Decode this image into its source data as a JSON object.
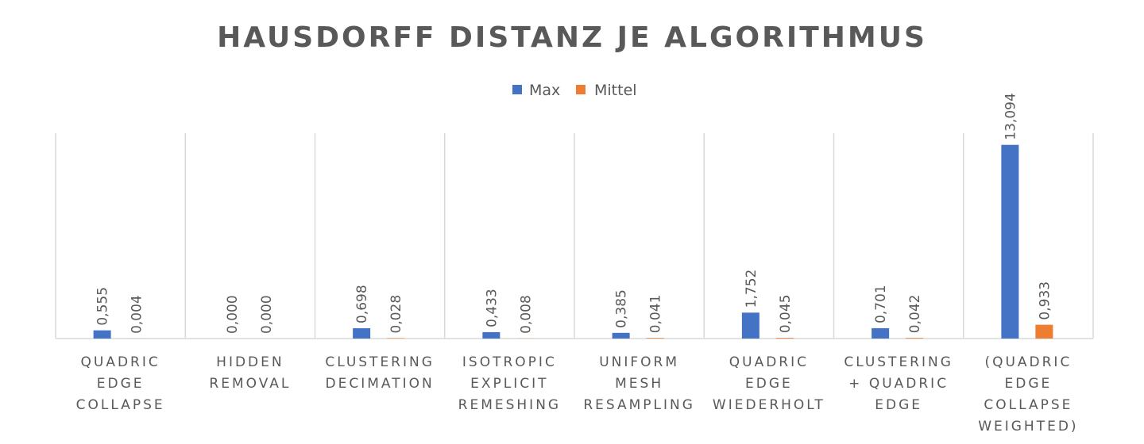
{
  "chart_data": {
    "type": "bar",
    "title": "HAUSDORFF DISTANZ JE ALGORITHMUS",
    "xlabel": "",
    "ylabel": "",
    "ylim": [
      0,
      16
    ],
    "grid": "vertical-category-separators",
    "legend": "top-center",
    "categories": [
      [
        "QUADRIC",
        "EDGE",
        "COLLAPSE"
      ],
      [
        "HIDDEN",
        "REMOVAL"
      ],
      [
        "CLUSTERING",
        "DECIMATION"
      ],
      [
        "ISOTROPIC",
        "EXPLICIT",
        "REMESHING"
      ],
      [
        "UNIFORM",
        "MESH",
        "RESAMPLING"
      ],
      [
        "QUADRIC",
        "EDGE",
        "WIEDERHOLT"
      ],
      [
        "CLUSTERING",
        "+ QUADRIC",
        "EDGE"
      ],
      [
        "(QUADRIC",
        "EDGE",
        "COLLAPSE",
        "WEIGHTED)"
      ]
    ],
    "series": [
      {
        "name": "Max",
        "color": "#4472c4",
        "values": [
          0.555,
          0.0,
          0.698,
          0.433,
          0.385,
          1.752,
          0.701,
          13.094
        ],
        "labels": [
          "0,555",
          "0,000",
          "0,698",
          "0,433",
          "0,385",
          "1,752",
          "0,701",
          "13,094"
        ]
      },
      {
        "name": "Mittel",
        "color": "#ed7d31",
        "values": [
          0.004,
          0.0,
          0.028,
          0.008,
          0.041,
          0.045,
          0.042,
          0.933
        ],
        "labels": [
          "0,004",
          "0,000",
          "0,028",
          "0,008",
          "0,041",
          "0,045",
          "0,042",
          "0,933"
        ]
      }
    ]
  }
}
